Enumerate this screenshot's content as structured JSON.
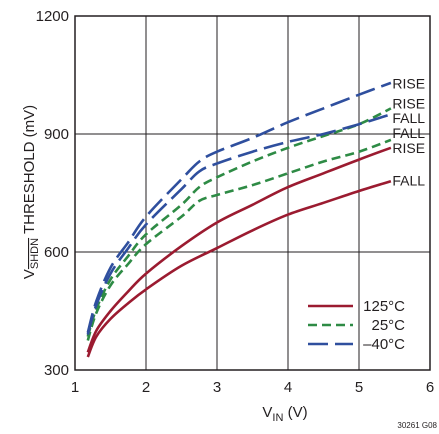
{
  "chart_data": {
    "type": "line",
    "xlabel": {
      "main": "V",
      "sub": "IN",
      "unit": " (V)"
    },
    "ylabel": {
      "main": "V",
      "sub": "SHDN",
      "rest": " THRESHOLD (mV)"
    },
    "xlim": [
      1,
      6
    ],
    "ylim": [
      300,
      1200
    ],
    "xticks": [
      1,
      2,
      3,
      4,
      5,
      6
    ],
    "yticks": [
      300,
      600,
      900,
      1200
    ],
    "xtick_labels": [
      "1",
      "2",
      "3",
      "4",
      "5",
      "6"
    ],
    "ytick_labels": [
      "300",
      "600",
      "900",
      "1200"
    ],
    "grid": true,
    "legend_position": "bottom-right",
    "legend": [
      {
        "label": "125°C",
        "color": "#9b1b30",
        "dash": "solid"
      },
      {
        "label": "25°C",
        "color": "#2e8b45",
        "dash": "dashed"
      },
      {
        "label": "–40°C",
        "color": "#2f4f9e",
        "dash": "longdash"
      }
    ],
    "series": [
      {
        "temperature": "125°C",
        "direction": "RISE",
        "color": "#9b1b30",
        "dash": "solid",
        "x": [
          1.18,
          1.3,
          1.5,
          1.75,
          2.0,
          2.5,
          3.0,
          3.5,
          4.0,
          4.5,
          5.0,
          5.45
        ],
        "y": [
          345,
          400,
          450,
          500,
          545,
          615,
          675,
          720,
          765,
          800,
          835,
          865
        ]
      },
      {
        "temperature": "125°C",
        "direction": "FALL",
        "color": "#9b1b30",
        "dash": "solid",
        "x": [
          1.18,
          1.3,
          1.5,
          1.75,
          2.0,
          2.5,
          3.0,
          3.5,
          4.0,
          4.5,
          5.0,
          5.45
        ],
        "y": [
          333,
          385,
          430,
          470,
          505,
          565,
          610,
          655,
          695,
          725,
          755,
          780
        ]
      },
      {
        "temperature": "25°C",
        "direction": "RISE",
        "color": "#2e8b45",
        "dash": "dashed",
        "x": [
          1.18,
          1.3,
          1.5,
          1.75,
          2.0,
          2.5,
          2.75,
          3.0,
          3.5,
          4.0,
          4.5,
          5.0,
          5.45
        ],
        "y": [
          385,
          455,
          530,
          590,
          645,
          720,
          765,
          790,
          830,
          865,
          895,
          925,
          965
        ]
      },
      {
        "temperature": "25°C",
        "direction": "FALL",
        "color": "#2e8b45",
        "dash": "dashed",
        "x": [
          1.18,
          1.3,
          1.5,
          1.75,
          2.0,
          2.5,
          2.75,
          3.0,
          3.5,
          4.0,
          4.5,
          5.0,
          5.45
        ],
        "y": [
          375,
          445,
          515,
          570,
          620,
          690,
          730,
          745,
          770,
          800,
          830,
          855,
          885
        ]
      },
      {
        "temperature": "–40°C",
        "direction": "RISE",
        "color": "#2f4f9e",
        "dash": "longdash",
        "x": [
          1.18,
          1.3,
          1.5,
          1.75,
          2.0,
          2.5,
          2.75,
          3.0,
          3.5,
          4.0,
          4.5,
          5.0,
          5.45
        ],
        "y": [
          395,
          475,
          560,
          625,
          690,
          785,
          830,
          855,
          890,
          930,
          965,
          1000,
          1030
        ]
      },
      {
        "temperature": "–40°C",
        "direction": "FALL",
        "color": "#2f4f9e",
        "dash": "longdash",
        "x": [
          1.18,
          1.3,
          1.5,
          1.75,
          2.0,
          2.5,
          2.75,
          3.0,
          3.5,
          4.0,
          4.5,
          5.0,
          5.45
        ],
        "y": [
          390,
          465,
          545,
          610,
          670,
          760,
          805,
          825,
          855,
          880,
          900,
          925,
          950
        ]
      }
    ],
    "end_labels": [
      {
        "text": "RISE",
        "x": 5.47,
        "y": 1028
      },
      {
        "text": "RISE",
        "x": 5.47,
        "y": 978
      },
      {
        "text": "FALL",
        "x": 5.47,
        "y": 941
      },
      {
        "text": "FALL",
        "x": 5.47,
        "y": 902
      },
      {
        "text": "RISE",
        "x": 5.47,
        "y": 865
      },
      {
        "text": "FALL",
        "x": 5.47,
        "y": 782
      }
    ],
    "footnote": "30261 G08"
  }
}
